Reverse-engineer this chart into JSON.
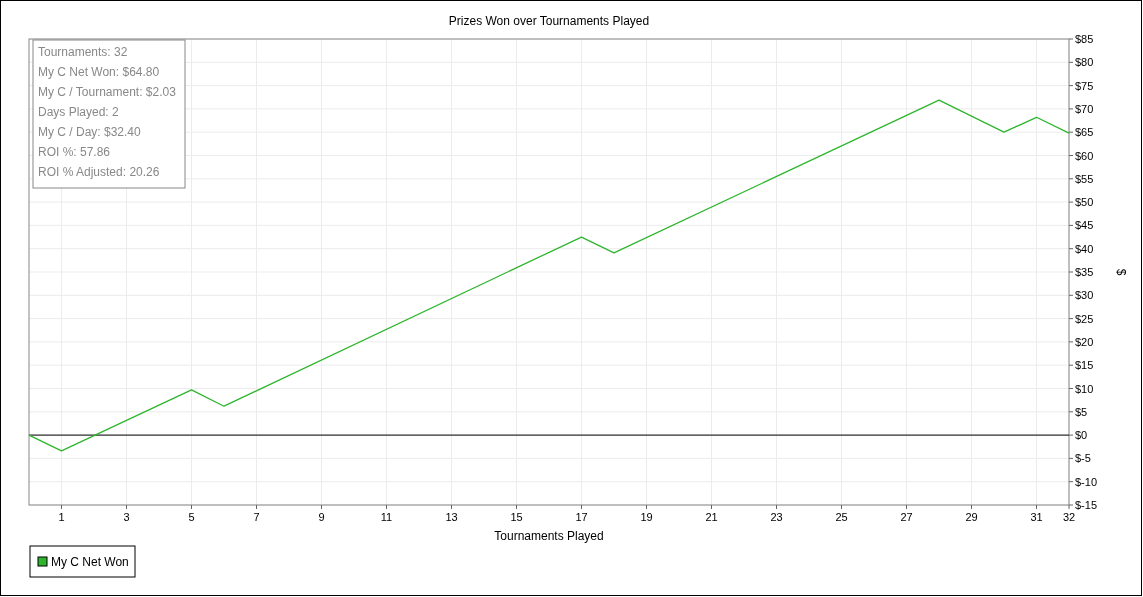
{
  "chart_data": {
    "type": "line",
    "title": "Prizes Won over Tournaments Played",
    "xlabel": "Tournaments Played",
    "ylabel": "$",
    "series": [
      {
        "name": "My C Net Won",
        "color": "#2db52d",
        "x": [
          0,
          1,
          5,
          6,
          17,
          18,
          28,
          30,
          31,
          32
        ],
        "values": [
          0,
          -3.4,
          9.7,
          6.2,
          42.5,
          39.1,
          71.9,
          65,
          68.2,
          64.8
        ]
      }
    ],
    "xlim": [
      0,
      32
    ],
    "xticks": [
      1,
      3,
      5,
      7,
      9,
      11,
      13,
      15,
      17,
      19,
      21,
      23,
      25,
      27,
      29,
      31,
      32
    ],
    "ylim": [
      -15,
      85
    ],
    "yticks": [
      {
        "value": -15,
        "label": "$-15"
      },
      {
        "value": -10,
        "label": "$-10"
      },
      {
        "value": -5,
        "label": "$-5"
      },
      {
        "value": 0,
        "label": "$0"
      },
      {
        "value": 5,
        "label": "$5"
      },
      {
        "value": 10,
        "label": "$10"
      },
      {
        "value": 15,
        "label": "$15"
      },
      {
        "value": 20,
        "label": "$20"
      },
      {
        "value": 25,
        "label": "$25"
      },
      {
        "value": 30,
        "label": "$30"
      },
      {
        "value": 35,
        "label": "$35"
      },
      {
        "value": 40,
        "label": "$40"
      },
      {
        "value": 45,
        "label": "$45"
      },
      {
        "value": 50,
        "label": "$50"
      },
      {
        "value": 55,
        "label": "$55"
      },
      {
        "value": 60,
        "label": "$60"
      },
      {
        "value": 65,
        "label": "$65"
      },
      {
        "value": 70,
        "label": "$70"
      },
      {
        "value": 75,
        "label": "$75"
      },
      {
        "value": 80,
        "label": "$80"
      },
      {
        "value": 85,
        "label": "$85"
      }
    ],
    "ref_lines": [
      {
        "axis": "y",
        "value": 0,
        "color": "#000000"
      }
    ],
    "annotations": [
      "Tournaments: 32",
      "My C Net Won: $64.80",
      "My C / Tournament: $2.03",
      "Days Played: 2",
      "My C / Day: $32.40",
      "ROI %: 57.86",
      "ROI % Adjusted: 20.26"
    ],
    "grid": true,
    "legend": "bottom left",
    "marker": "none",
    "line_style": "solid"
  }
}
